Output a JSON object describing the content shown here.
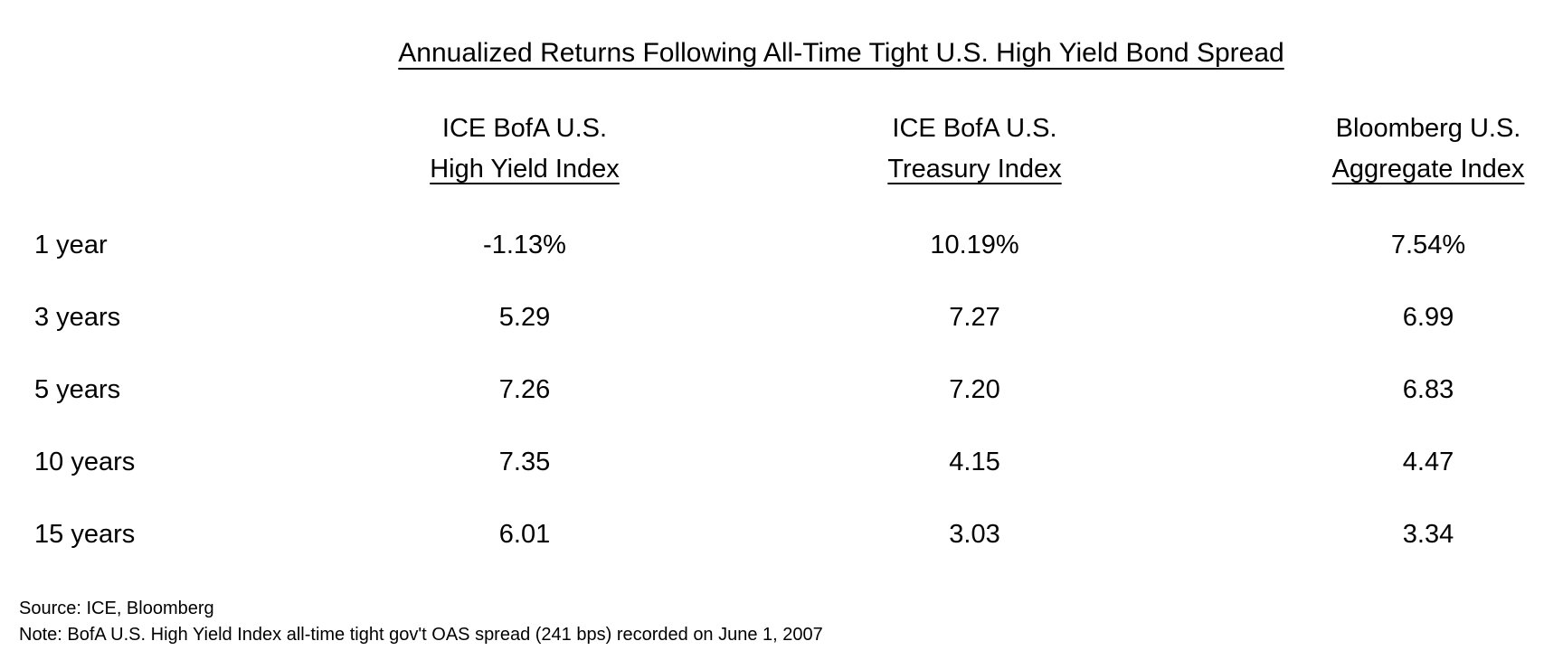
{
  "page": {
    "background_color": "#ffffff",
    "text_color": "#000000"
  },
  "table": {
    "title": "Annualized Returns Following All-Time Tight U.S. High Yield Bond Spread",
    "columns": [
      {
        "line1": "ICE BofA U.S.",
        "line2": "High Yield Index"
      },
      {
        "line1": "ICE BofA U.S.",
        "line2": "Treasury Index"
      },
      {
        "line1": "Bloomberg U.S.",
        "line2": "Aggregate Index"
      }
    ],
    "rows": [
      {
        "label": "1 year",
        "values": [
          "-1.13%",
          "10.19%",
          "7.54%"
        ]
      },
      {
        "label": "3 years",
        "values": [
          "5.29",
          "7.27",
          "6.99"
        ]
      },
      {
        "label": "5 years",
        "values": [
          "7.26",
          "7.20",
          "6.83"
        ]
      },
      {
        "label": "10 years",
        "values": [
          "7.35",
          "4.15",
          "4.47"
        ]
      },
      {
        "label": "15 years",
        "values": [
          "6.01",
          "3.03",
          "3.34"
        ]
      }
    ]
  },
  "footnotes": {
    "source": "Source: ICE, Bloomberg",
    "note": "Note: BofA U.S. High Yield Index all-time tight gov't OAS spread (241 bps) recorded on June 1, 2007"
  },
  "chart_data": {
    "type": "table",
    "title": "Annualized Returns Following All-Time Tight U.S. High Yield Bond Spread",
    "categories": [
      "1 year",
      "3 years",
      "5 years",
      "10 years",
      "15 years"
    ],
    "series": [
      {
        "name": "ICE BofA U.S. High Yield Index",
        "values": [
          -1.13,
          5.29,
          7.26,
          7.35,
          6.01
        ]
      },
      {
        "name": "ICE BofA U.S. Treasury Index",
        "values": [
          10.19,
          7.27,
          7.2,
          4.15,
          3.03
        ]
      },
      {
        "name": "Bloomberg U.S. Aggregate Index",
        "values": [
          7.54,
          6.99,
          6.83,
          4.47,
          3.34
        ]
      }
    ],
    "source": "Source: ICE, Bloomberg",
    "note": "Note: BofA U.S. High Yield Index all-time tight gov't OAS spread (241 bps) recorded on June 1, 2007"
  }
}
